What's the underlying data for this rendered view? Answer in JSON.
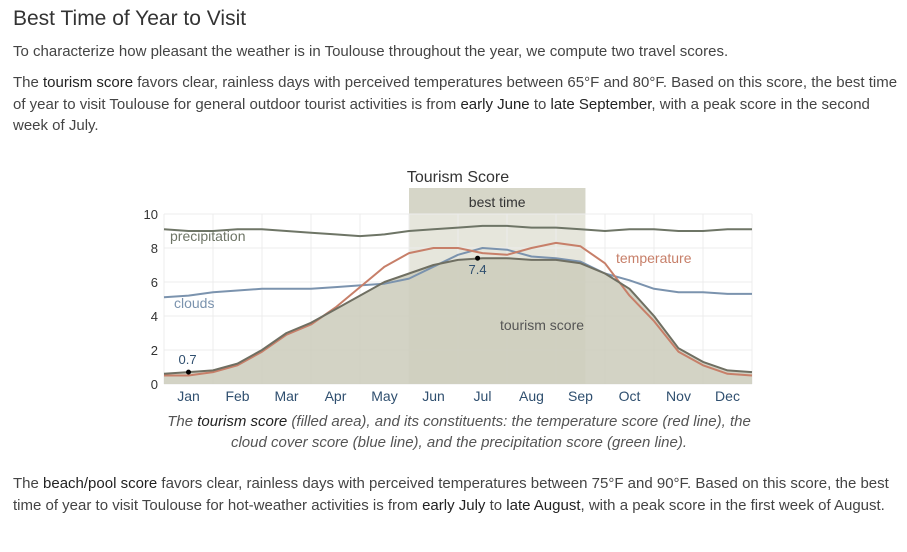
{
  "heading": "Best Time of Year to Visit",
  "intro": "To characterize how pleasant the weather is in Toulouse throughout the year, we compute two travel scores.",
  "tourism": {
    "p_a": "The ",
    "term": "tourism score",
    "p_b": " favors clear, rainless days with perceived temperatures between 65°F and 80°F. Based on this score, the best time of year to visit Toulouse for general outdoor tourist activities is from ",
    "start": "early June",
    "p_c": " to ",
    "end": "late September",
    "p_d": ", with a peak score in the second week of July."
  },
  "caption": {
    "c_a": "The ",
    "term": "tourism score",
    "c_b": " (filled area), and its constituents: the temperature score (red line), the cloud cover score (blue line), and the precipitation score (green line)."
  },
  "beach": {
    "p_a": "The ",
    "term": "beach/pool score",
    "p_b": " favors clear, rainless days with perceived temperatures between 75°F and 90°F. Based on this score, the best time of year to visit Toulouse for hot-weather activities is from ",
    "start": "early July",
    "p_c": " to ",
    "end": "late August",
    "p_d": ", with a peak score in the first week of August."
  },
  "chart_data": {
    "type": "area",
    "title": "Tourism Score",
    "best_time_label": "best time",
    "best_time_range": [
      5.0,
      8.6
    ],
    "x_ticks": [
      {
        "label": "Jan",
        "x": 0.5
      },
      {
        "label": "Feb",
        "x": 1.5
      },
      {
        "label": "Mar",
        "x": 2.5
      },
      {
        "label": "Apr",
        "x": 3.5
      },
      {
        "label": "May",
        "x": 4.5
      },
      {
        "label": "Jun",
        "x": 5.5
      },
      {
        "label": "Jul",
        "x": 6.5
      },
      {
        "label": "Aug",
        "x": 7.5
      },
      {
        "label": "Sep",
        "x": 8.5
      },
      {
        "label": "Oct",
        "x": 9.5
      },
      {
        "label": "Nov",
        "x": 10.5
      },
      {
        "label": "Dec",
        "x": 11.5
      }
    ],
    "y_ticks": [
      "0",
      "2",
      "4",
      "6",
      "8",
      "10"
    ],
    "ylim": [
      0,
      10
    ],
    "xlim": [
      0,
      12
    ],
    "annotations": [
      {
        "label": "0.7",
        "x": 0.5,
        "y": 0.7
      },
      {
        "label": "7.4",
        "x": 6.4,
        "y": 7.4
      }
    ],
    "x": [
      0,
      0.5,
      1,
      1.5,
      2,
      2.5,
      3,
      3.5,
      4,
      4.5,
      5,
      5.5,
      6,
      6.5,
      7,
      7.5,
      8,
      8.5,
      9,
      9.5,
      10,
      10.5,
      11,
      11.5,
      12
    ],
    "series": [
      {
        "name": "tourism score",
        "color": "#6f6f62",
        "fill": "#cbcbbb",
        "values": [
          0.6,
          0.7,
          0.8,
          1.2,
          2.0,
          3.0,
          3.6,
          4.4,
          5.2,
          6.0,
          6.5,
          7.0,
          7.3,
          7.4,
          7.4,
          7.3,
          7.3,
          7.1,
          6.5,
          5.6,
          4.0,
          2.1,
          1.3,
          0.8,
          0.7
        ]
      },
      {
        "name": "temperature",
        "color": "#c77f69",
        "values": [
          0.5,
          0.5,
          0.7,
          1.1,
          1.9,
          2.9,
          3.5,
          4.5,
          5.7,
          6.9,
          7.7,
          8.0,
          8.0,
          7.7,
          7.6,
          8.0,
          8.3,
          8.1,
          7.1,
          5.2,
          3.7,
          1.9,
          1.1,
          0.6,
          0.5
        ]
      },
      {
        "name": "clouds",
        "color": "#7b93ae",
        "values": [
          5.1,
          5.2,
          5.4,
          5.5,
          5.6,
          5.6,
          5.6,
          5.7,
          5.8,
          5.9,
          6.2,
          6.9,
          7.6,
          8.0,
          7.9,
          7.5,
          7.4,
          7.2,
          6.5,
          6.1,
          5.6,
          5.4,
          5.4,
          5.3,
          5.3
        ]
      },
      {
        "name": "precipitation",
        "color": "#6e7566",
        "values": [
          9.1,
          9.0,
          9.0,
          9.1,
          9.1,
          9.0,
          8.9,
          8.8,
          8.7,
          8.8,
          9.0,
          9.1,
          9.2,
          9.3,
          9.3,
          9.2,
          9.2,
          9.1,
          9.0,
          9.1,
          9.1,
          9.0,
          9.0,
          9.1,
          9.1
        ]
      }
    ],
    "series_labels": {
      "precipitation": "precipitation",
      "clouds": "clouds",
      "temperature": "temperature",
      "tourism": "tourism score"
    },
    "grid": true
  }
}
